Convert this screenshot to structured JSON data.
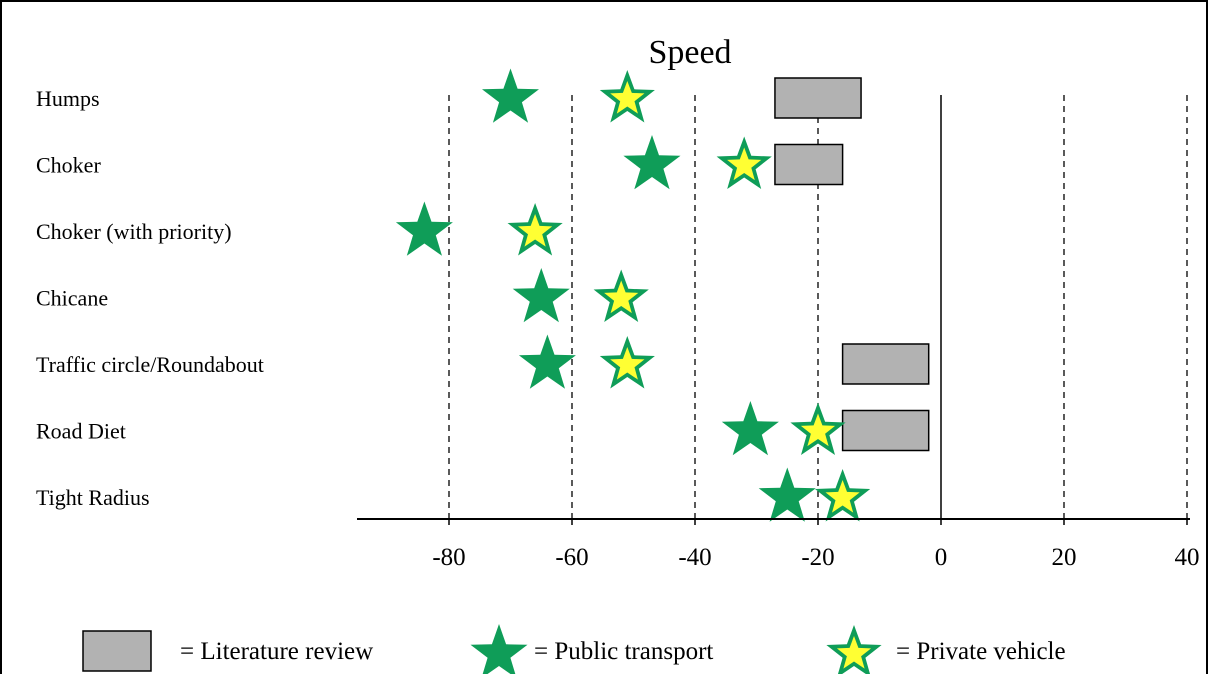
{
  "chart_data": {
    "type": "scatter",
    "title": "Speed",
    "categories": [
      "Humps",
      "Choker",
      "Choker (with priority)",
      "Chicane",
      "Traffic circle/Roundabout",
      "Road Diet",
      "Tight Radius"
    ],
    "xlim": [
      -95,
      42
    ],
    "xticks": [
      -80,
      -60,
      -40,
      -20,
      0,
      20,
      40
    ],
    "xtick_labels": [
      "-80",
      "-60",
      "-40",
      "-20",
      "0",
      "20",
      "40"
    ],
    "grid": "vertical dashed",
    "ranges": {
      "name": "Literature review",
      "color": "#b2b2b2",
      "values": [
        [
          -27,
          -13
        ],
        [
          -27,
          -16
        ],
        null,
        null,
        [
          -16,
          -2
        ],
        [
          -16,
          -2
        ],
        null
      ]
    },
    "series": [
      {
        "name": "Public transport",
        "marker": "star",
        "color": "#0f9d58",
        "values": [
          -70,
          -47,
          -84,
          -65,
          -64,
          -31,
          -25
        ]
      },
      {
        "name": "Private vehicle",
        "marker": "star",
        "color": "#ffff33",
        "outline": "#0f9d58",
        "values": [
          -51,
          -32,
          -66,
          -52,
          -51,
          -20,
          -16
        ]
      }
    ],
    "legend": {
      "position": "bottom",
      "items": [
        {
          "label": "= Literature review",
          "symbol": "box"
        },
        {
          "label": "= Public transport",
          "symbol": "green-star"
        },
        {
          "label": "= Private vehicle",
          "symbol": "yellow-star"
        }
      ]
    }
  }
}
